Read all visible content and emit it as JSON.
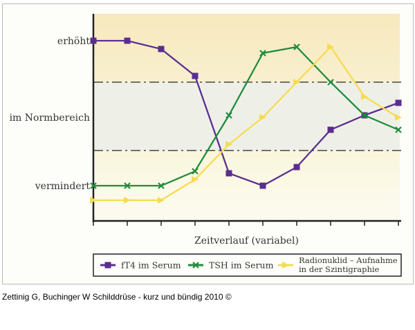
{
  "chart_data": {
    "type": "line",
    "title": "",
    "xlabel": "Zeitverlauf (variabel)",
    "ylabel": "",
    "x": [
      1,
      2,
      3,
      4,
      5,
      6,
      7,
      8,
      9,
      10
    ],
    "ylim": [
      0,
      100
    ],
    "y_tick_labels": [
      {
        "label": "erhöht",
        "value": 87
      },
      {
        "label": "im Normbereich",
        "value": 50
      },
      {
        "label": "vermindert",
        "value": 17
      }
    ],
    "bands": [
      {
        "name": "erhöht",
        "from": 67,
        "to": 100,
        "color": "#f8ebc2"
      },
      {
        "name": "im Normbereich",
        "from": 34,
        "to": 67,
        "color": "#eef0e8"
      },
      {
        "name": "vermindert",
        "from": 0,
        "to": 34,
        "color": "#fbf8e4"
      }
    ],
    "series": [
      {
        "name": "fT4 im Serum",
        "color": "#5b2d90",
        "marker": "square",
        "values": [
          87,
          87,
          83,
          70,
          23,
          17,
          26,
          44,
          51,
          57
        ]
      },
      {
        "name": "TSH im Serum",
        "color": "#1e8c3c",
        "marker": "x",
        "values": [
          17,
          17,
          17,
          24,
          51,
          81,
          84,
          67,
          51,
          44
        ]
      },
      {
        "name": "Radionuklid – Aufnahme in der Szintigraphie",
        "legend_lines": [
          "Radionuklid – Aufnahme",
          "in der Szintigraphie"
        ],
        "color": "#f5dc50",
        "marker": "triangle",
        "values": [
          10,
          10,
          10,
          20,
          37,
          50,
          67,
          84,
          60,
          50
        ]
      }
    ],
    "legend": "bottom",
    "grid": false
  },
  "caption": "Zettinig G, Buchinger W Schilddrüse - kurz und bündig 2010 ©"
}
